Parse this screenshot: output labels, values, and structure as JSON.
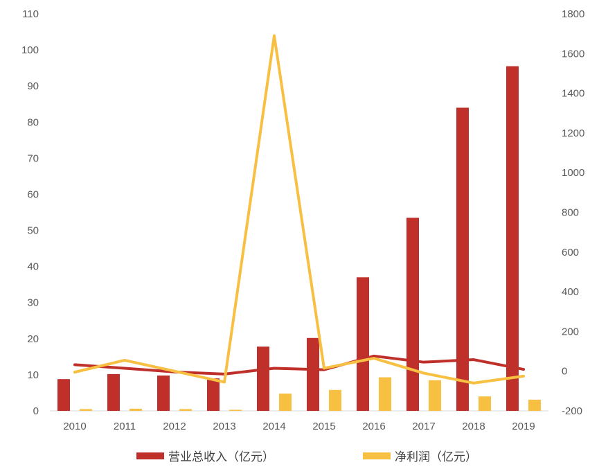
{
  "chart_data": {
    "type": "bar",
    "categories": [
      "2010",
      "2011",
      "2012",
      "2013",
      "2014",
      "2015",
      "2016",
      "2017",
      "2018",
      "2019"
    ],
    "colors": {
      "revenue": "#c0302a",
      "profit": "#f7c043"
    },
    "left_axis": {
      "min": 0,
      "max": 110,
      "step": 10,
      "tick_labels": [
        "0",
        "10",
        "20",
        "30",
        "40",
        "50",
        "60",
        "70",
        "80",
        "90",
        "100",
        "110"
      ]
    },
    "right_axis": {
      "min": -200,
      "max": 1800,
      "step": 200,
      "tick_labels": [
        "-200",
        "0",
        "200",
        "400",
        "600",
        "800",
        "1000",
        "1200",
        "1400",
        "1600",
        "1800"
      ]
    },
    "series": [
      {
        "name": "营业总收入（亿元）",
        "kind": "bar",
        "axis": "left",
        "color_key": "revenue",
        "values": [
          8.8,
          10.2,
          9.8,
          9.0,
          17.8,
          20.2,
          37.0,
          53.5,
          84.0,
          95.5
        ]
      },
      {
        "name": "净利润（亿元）",
        "kind": "bar",
        "axis": "left",
        "color_key": "profit",
        "values": [
          0.5,
          0.6,
          0.5,
          0.3,
          4.8,
          5.8,
          9.3,
          8.5,
          4.0,
          3.1
        ]
      },
      {
        "name": "营业总收入（亿元）",
        "kind": "line",
        "axis": "left",
        "color_key": "revenue",
        "values": [
          12.8,
          11.8,
          10.8,
          10.2,
          11.8,
          11.4,
          15.2,
          13.5,
          14.2,
          11.5
        ]
      },
      {
        "name": "净利润（亿元）",
        "kind": "line",
        "axis": "right",
        "color_key": "profit",
        "values": [
          -5,
          55,
          0,
          -55,
          1690,
          15,
          65,
          -10,
          -60,
          -25
        ]
      }
    ],
    "legend": [
      {
        "label": "营业总收入（亿元）",
        "color_key": "revenue"
      },
      {
        "label": "净利润（亿元）",
        "color_key": "profit"
      }
    ],
    "legend_position": "bottom",
    "grid": false
  }
}
